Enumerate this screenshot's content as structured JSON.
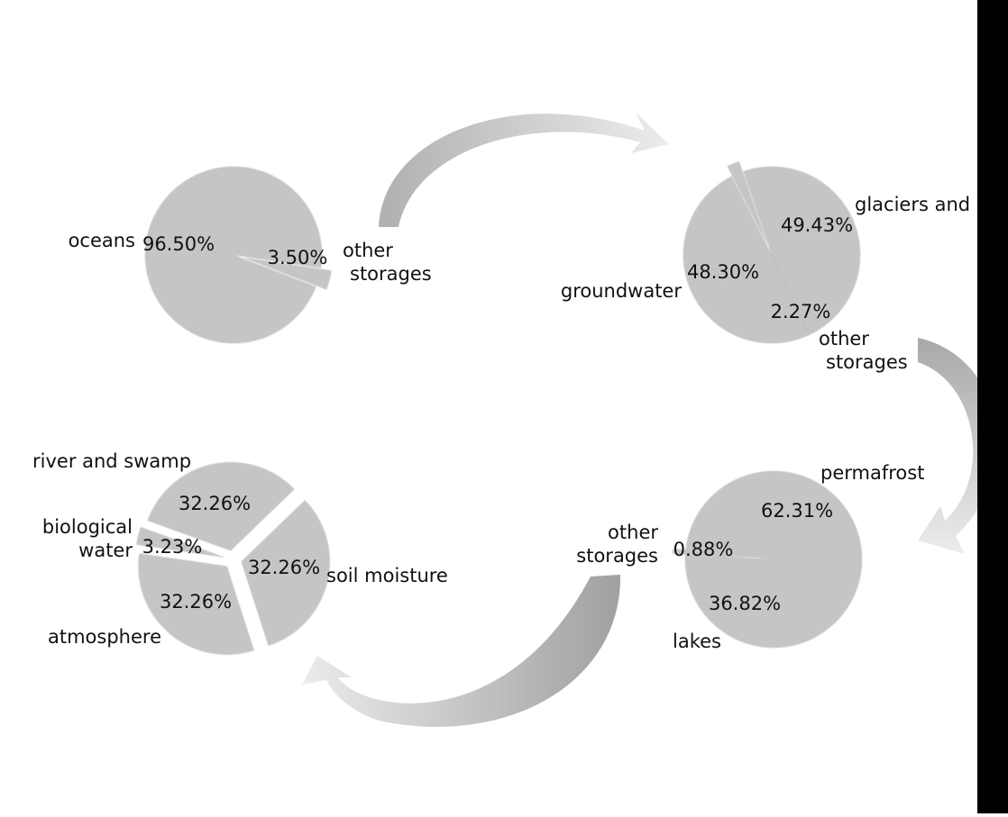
{
  "colors": {
    "background": "#ffffff",
    "right_bar": "#000000",
    "arrow_gradient_start": "#b8b8b8",
    "arrow_gradient_end": "#e8e8e8"
  },
  "chart_data": [
    {
      "type": "pie",
      "slices": [
        {
          "label": "oceans",
          "value": 96.5,
          "pct_text": "96.50%",
          "color": "#5aabfb"
        },
        {
          "label": "other\nstorages",
          "value": 3.5,
          "pct_text": "3.50%",
          "color": "#f77f7e"
        }
      ]
    },
    {
      "type": "pie",
      "slices": [
        {
          "label": "glaciers and",
          "value": 49.43,
          "pct_text": "49.43%",
          "color": "#31d2eb"
        },
        {
          "label": "groundwater",
          "value": 48.3,
          "pct_text": "48.30%",
          "color": "#fdb44a"
        },
        {
          "label": "other\nstorages",
          "value": 2.27,
          "pct_text": "2.27%",
          "color": "#9081e4"
        }
      ]
    },
    {
      "type": "pie",
      "slices": [
        {
          "label": "permafrost",
          "value": 62.31,
          "pct_text": "62.31%",
          "color": "#9088e5"
        },
        {
          "label": "lakes",
          "value": 36.82,
          "pct_text": "36.82%",
          "color": "#5cbf93"
        },
        {
          "label": "other\nstorages",
          "value": 0.88,
          "pct_text": "0.88%",
          "color": "#5aabfb"
        }
      ]
    },
    {
      "type": "pie",
      "slices": [
        {
          "label": "river and swamp",
          "value": 32.26,
          "pct_text": "32.26%",
          "color": "#5cbf93"
        },
        {
          "label": "biological\nwater",
          "value": 3.23,
          "pct_text": "3.23%",
          "color": "#fdb44a"
        },
        {
          "label": "atmosphere",
          "value": 32.26,
          "pct_text": "32.26%",
          "color": "#f77f7e"
        },
        {
          "label": "soil moisture",
          "value": 32.26,
          "pct_text": "32.26%",
          "color": "#5aabfb"
        }
      ]
    }
  ]
}
